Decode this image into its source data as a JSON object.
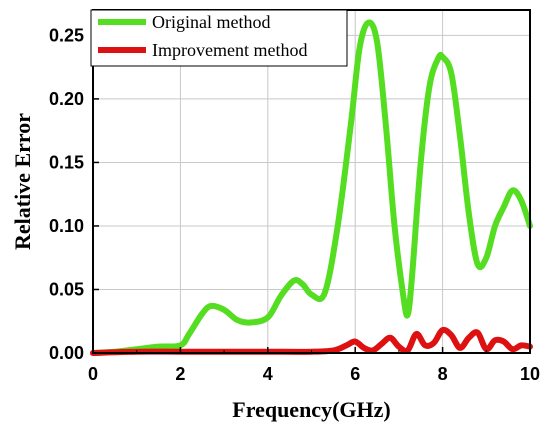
{
  "chart_data": {
    "type": "line",
    "title": "",
    "xlabel": "Frequency(GHz)",
    "ylabel": "Relative Error",
    "xlim": [
      0,
      10
    ],
    "ylim": [
      0,
      0.27
    ],
    "x_ticks": [
      "0",
      "2",
      "4",
      "6",
      "8",
      "10"
    ],
    "y_ticks": [
      "0.00",
      "0.05",
      "0.10",
      "0.15",
      "0.20",
      "0.25"
    ],
    "grid": true,
    "legend_position": "top-left",
    "series": [
      {
        "name": "Original method",
        "color": "#55dd22",
        "x": [
          0,
          0.5,
          1.0,
          1.5,
          2.0,
          2.2,
          2.5,
          2.7,
          3.0,
          3.3,
          3.6,
          4.0,
          4.3,
          4.6,
          4.8,
          5.0,
          5.3,
          5.6,
          5.9,
          6.1,
          6.3,
          6.5,
          6.7,
          6.9,
          7.1,
          7.2,
          7.3,
          7.5,
          7.7,
          7.9,
          8.0,
          8.2,
          8.4,
          8.6,
          8.8,
          9.0,
          9.2,
          9.4,
          9.6,
          9.8,
          10.0
        ],
        "y": [
          0.0,
          0.001,
          0.003,
          0.005,
          0.006,
          0.015,
          0.031,
          0.037,
          0.034,
          0.026,
          0.024,
          0.028,
          0.045,
          0.057,
          0.054,
          0.046,
          0.047,
          0.1,
          0.18,
          0.24,
          0.26,
          0.245,
          0.18,
          0.1,
          0.045,
          0.03,
          0.06,
          0.15,
          0.21,
          0.232,
          0.233,
          0.22,
          0.17,
          0.11,
          0.07,
          0.075,
          0.1,
          0.115,
          0.128,
          0.12,
          0.1
        ]
      },
      {
        "name": "Improvement method",
        "color": "#dd1111",
        "x": [
          0,
          1.0,
          2.0,
          3.0,
          4.0,
          5.0,
          5.5,
          5.8,
          6.0,
          6.2,
          6.4,
          6.6,
          6.8,
          7.0,
          7.2,
          7.4,
          7.6,
          7.8,
          8.0,
          8.2,
          8.4,
          8.6,
          8.8,
          9.0,
          9.2,
          9.4,
          9.6,
          9.8,
          10.0
        ],
        "y": [
          0.0,
          0.001,
          0.001,
          0.001,
          0.001,
          0.001,
          0.002,
          0.006,
          0.009,
          0.004,
          0.002,
          0.007,
          0.012,
          0.005,
          0.002,
          0.015,
          0.006,
          0.008,
          0.018,
          0.014,
          0.004,
          0.012,
          0.016,
          0.003,
          0.01,
          0.009,
          0.003,
          0.006,
          0.005
        ]
      }
    ]
  }
}
